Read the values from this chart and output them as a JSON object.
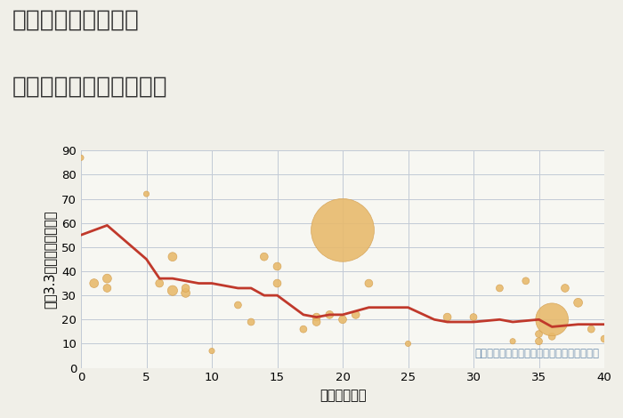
{
  "title_line1": "福岡県朝倉市草水の",
  "title_line2": "築年数別中古戸建て価格",
  "xlabel": "築年数（年）",
  "ylabel": "坪（3.3㎡）単価（万円）",
  "bg_color": "#f0efe8",
  "plot_bg_color": "#f7f7f2",
  "grid_color": "#c2cad6",
  "xlim": [
    0,
    40
  ],
  "ylim": [
    0,
    90
  ],
  "xticks": [
    0,
    5,
    10,
    15,
    20,
    25,
    30,
    35,
    40
  ],
  "yticks": [
    0,
    10,
    20,
    30,
    40,
    50,
    60,
    70,
    80,
    90
  ],
  "scatter_x": [
    0,
    1,
    2,
    2,
    5,
    6,
    7,
    7,
    8,
    8,
    10,
    12,
    13,
    14,
    15,
    15,
    17,
    18,
    18,
    19,
    20,
    20,
    21,
    22,
    25,
    28,
    30,
    32,
    33,
    34,
    35,
    35,
    36,
    36,
    37,
    38,
    39,
    40
  ],
  "scatter_y": [
    87,
    35,
    37,
    33,
    72,
    35,
    46,
    32,
    31,
    33,
    7,
    26,
    19,
    46,
    42,
    35,
    16,
    21,
    19,
    22,
    57,
    20,
    22,
    35,
    10,
    21,
    21,
    33,
    11,
    36,
    11,
    14,
    13,
    20,
    33,
    27,
    16,
    12
  ],
  "scatter_s": [
    20,
    50,
    50,
    40,
    20,
    40,
    50,
    65,
    50,
    40,
    20,
    32,
    32,
    40,
    40,
    40,
    32,
    40,
    40,
    40,
    2600,
    40,
    40,
    40,
    20,
    40,
    32,
    32,
    20,
    32,
    32,
    32,
    32,
    700,
    40,
    50,
    32,
    32
  ],
  "line_x": [
    0,
    2,
    5,
    6,
    7,
    8,
    9,
    10,
    12,
    13,
    14,
    15,
    17,
    18,
    19,
    20,
    22,
    25,
    27,
    28,
    30,
    32,
    33,
    35,
    36,
    38,
    39,
    40
  ],
  "line_y": [
    55,
    59,
    45,
    37,
    37,
    36,
    35,
    35,
    33,
    33,
    30,
    30,
    22,
    21,
    22,
    22,
    25,
    25,
    20,
    19,
    19,
    20,
    19,
    20,
    17,
    18,
    18,
    18
  ],
  "scatter_color": "#e8b96a",
  "scatter_edge_color": "#d4a052",
  "line_color": "#c0392b",
  "annotation": "円の大きさは、取引のあった物件面積を示す",
  "annotation_color": "#7090b0",
  "title_fontsize": 19,
  "axis_label_fontsize": 10.5,
  "tick_fontsize": 9.5,
  "annotation_fontsize": 8.5
}
